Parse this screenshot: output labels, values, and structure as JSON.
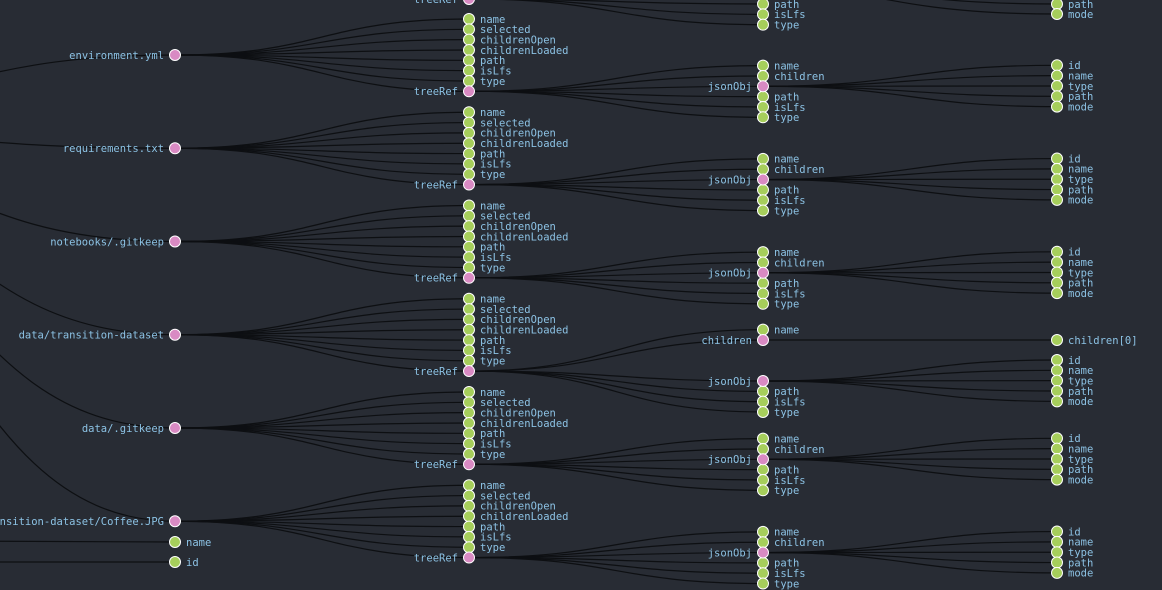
{
  "colors": {
    "background": "#282c34",
    "link": "#0d0f12",
    "leaf_node": "#a6ce5b",
    "branch_node": "#d98ac3",
    "node_stroke": "#ffffff",
    "label": "#8cc2e4"
  },
  "tree": {
    "files": [
      "environment.yml",
      "requirements.txt",
      "notebooks/.gitkeep",
      "data/transition-dataset",
      "data/.gitkeep",
      "nsition-dataset/Coffee.JPG"
    ],
    "root_leaves": [
      "name",
      "id"
    ],
    "top_partial": {
      "tree_ref_label": "treeRef",
      "json_leaves": [
        "path",
        "isLfs",
        "type"
      ],
      "child_leaves": [
        "path",
        "mode"
      ]
    },
    "tree_ref_label": "treeRef",
    "tree_ref_fields": [
      "name",
      "selected",
      "childrenOpen",
      "childrenLoaded",
      "path",
      "isLfs",
      "type"
    ],
    "json_obj_label": "jsonObj",
    "json_obj_fields": [
      "name",
      "children",
      "path",
      "isLfs",
      "type"
    ],
    "children_obj_fields": [
      "id",
      "name",
      "type",
      "path",
      "mode"
    ],
    "children_node_label": "children",
    "children_node_fields": [
      "name"
    ],
    "children_leaf_label": "children[0]"
  }
}
